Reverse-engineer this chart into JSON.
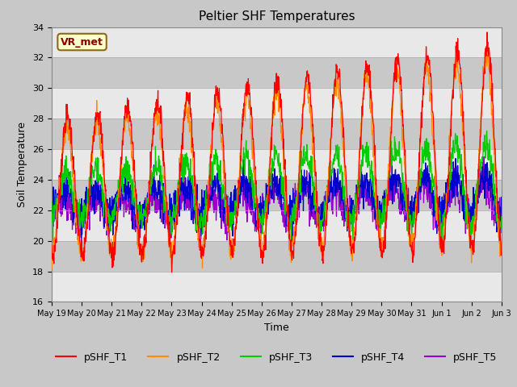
{
  "title": "Peltier SHF Temperatures",
  "ylabel": "Soil Temperature",
  "xlabel": "Time",
  "ylim": [
    16,
    34
  ],
  "yticks": [
    16,
    18,
    20,
    22,
    24,
    26,
    28,
    30,
    32,
    34
  ],
  "bg_color": "#c8c8c8",
  "plot_bg_color": "#c8c8c8",
  "line_colors": {
    "pSHF_T1": "#ff0000",
    "pSHF_T2": "#ff8c00",
    "pSHF_T3": "#00cc00",
    "pSHF_T4": "#0000cc",
    "pSHF_T5": "#9900cc"
  },
  "legend_labels": [
    "pSHF_T1",
    "pSHF_T2",
    "pSHF_T3",
    "pSHF_T4",
    "pSHF_T5"
  ],
  "annotation_text": "VR_met",
  "annotation_fg": "#8b0000",
  "annotation_bg": "#ffffcc",
  "annotation_edge": "#8b6914",
  "num_days": 15,
  "points_per_day": 96,
  "xlabels": [
    "May 19",
    "May 20",
    "May 21",
    "May 22",
    "May 23",
    "May 24",
    "May 25",
    "May 26",
    "May 27",
    "May 28",
    "May 29",
    "May 30",
    "May 31",
    "Jun 1",
    "Jun 2",
    "Jun 3"
  ],
  "stripe_color": "#e8e8e8",
  "stripe_alpha": 1.0
}
